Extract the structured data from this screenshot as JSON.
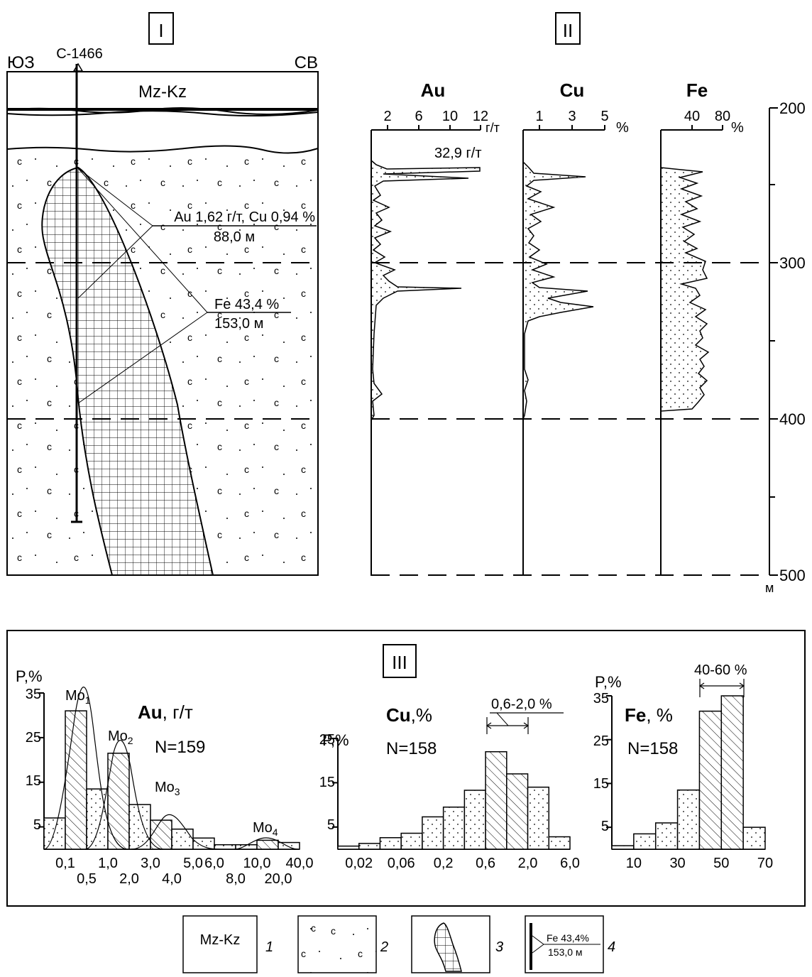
{
  "panels": {
    "section": "I",
    "logs": "II",
    "histograms": "III"
  },
  "section": {
    "left_dir": "ЮЗ",
    "right_dir": "СВ",
    "well": "С-1466",
    "cover": "Mz-Kz",
    "rock_symbol": "c",
    "intervals": [
      {
        "label1": "Au 1,62 г/т, Cu 0,94 %",
        "label2": "88,0 м",
        "from": 240,
        "to": 328
      },
      {
        "label1": "Fe 43,4 %",
        "label2": "153,0 м",
        "from": 240,
        "to": 393
      }
    ]
  },
  "logs": {
    "depth_ticks": [
      "200",
      "300",
      "400",
      "500"
    ],
    "depth_unit": "м",
    "depth_range": [
      200,
      500
    ],
    "columns": [
      {
        "element": "Au",
        "ticks": [
          "2",
          "6",
          "10",
          "12"
        ],
        "unit": "г/т",
        "peak_label": "32,9 г/т"
      },
      {
        "element": "Cu",
        "ticks": [
          "1",
          "3",
          "5"
        ],
        "unit": "%"
      },
      {
        "element": "Fe",
        "ticks": [
          "40",
          "80"
        ],
        "unit": "%"
      }
    ]
  },
  "legend": [
    {
      "num": "1",
      "text": "Mz-Kz"
    },
    {
      "num": "2",
      "text": "c"
    },
    {
      "num": "3",
      "text": ""
    },
    {
      "num": "4",
      "text": "Fe 43,4%",
      "text2": "153,0 м"
    }
  ],
  "chart_data": [
    {
      "type": "bar",
      "title": "Au, г/т",
      "title_element": "Au",
      "title_unit": ", г/т",
      "n_label": "N=159",
      "ylabel": "P,%",
      "yticks": [
        "35",
        "25",
        "15",
        "5"
      ],
      "ylim": [
        0,
        35
      ],
      "categories": [
        "0,1",
        "0,5",
        "1,0",
        "2,0",
        "3,0",
        "4,0",
        "5,0",
        "6,0",
        "8,0",
        "10,0",
        "20,0",
        "40,0"
      ],
      "tick_labels_top": [
        "0,1",
        "1,0",
        "3,0",
        "5,0",
        "6,0",
        "10,0",
        "40,0"
      ],
      "tick_labels_bottom": [
        "0,5",
        "2,0",
        "4,0",
        "8,0",
        "20,0"
      ],
      "values": [
        7,
        31,
        13.5,
        21.5,
        10,
        6.5,
        4.5,
        2.5,
        1,
        1,
        2,
        1.5
      ],
      "modes": [
        {
          "label": "Mo",
          "sub": "1"
        },
        {
          "label": "Mo",
          "sub": "2"
        },
        {
          "label": "Mo",
          "sub": "3"
        },
        {
          "label": "Mo",
          "sub": "4"
        }
      ]
    },
    {
      "type": "bar",
      "title": "Cu,%",
      "title_element": "Cu",
      "title_unit": ",%",
      "n_label": "N=158",
      "ylabel": "P,%",
      "yticks": [
        "25",
        "15",
        "5"
      ],
      "ylim": [
        0,
        25
      ],
      "tick_labels": [
        "0,02",
        "0,06",
        "0,2",
        "0,6",
        "2,0",
        "6,0"
      ],
      "values": [
        0.7,
        1.3,
        2.6,
        3.6,
        7.3,
        9.5,
        13.3,
        22,
        17,
        14,
        2.8
      ],
      "range_label": "0,6-2,0 %"
    },
    {
      "type": "bar",
      "title": "Fe, %",
      "title_element": "Fe",
      "title_unit": ", %",
      "n_label": "N=158",
      "ylabel": "P,%",
      "yticks": [
        "35",
        "25",
        "15",
        "5"
      ],
      "ylim": [
        0,
        35
      ],
      "tick_labels": [
        "10",
        "30",
        "50",
        "70"
      ],
      "values": [
        0.8,
        3.5,
        6,
        13.5,
        31.5,
        35,
        5
      ],
      "range_label": "40-60 %"
    }
  ]
}
